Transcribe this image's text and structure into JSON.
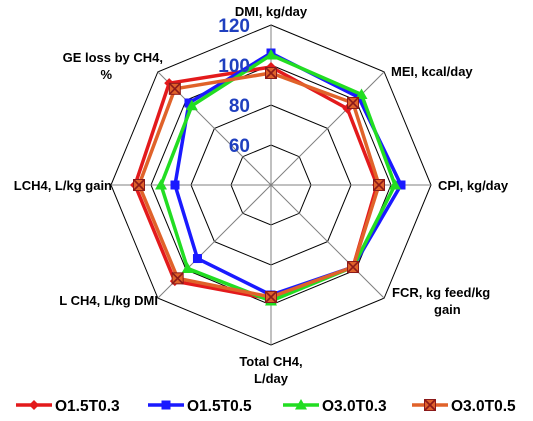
{
  "chart_data": {
    "type": "radar",
    "axes": [
      "DMI, kg/day",
      "MEI, kcal/day",
      "CPI, kg/day",
      "FCR, kg feed/kg gain",
      "Total CH4, L/day",
      "L CH4, L/kg DMI",
      "LCH4, L/kg gain",
      "GE loss by CH4, %"
    ],
    "axis_label_lines": [
      [
        "DMI, kg/day"
      ],
      [
        "MEI, kcal/day"
      ],
      [
        "CPI, kg/day"
      ],
      [
        "FCR, kg feed/kg",
        "gain"
      ],
      [
        "Total CH4,",
        "L/day"
      ],
      [
        "L CH4, L/kg DMI"
      ],
      [
        "LCH4, L/kg gain"
      ],
      [
        "GE loss by CH4,",
        "%"
      ]
    ],
    "ticks": [
      60,
      80,
      100,
      120
    ],
    "range": [
      40,
      120
    ],
    "grid": true,
    "legend_position": "bottom",
    "series": [
      {
        "name": "O1.5T0.3",
        "color": "#e31a1c",
        "marker": "diamond",
        "values": [
          99,
          94,
          93,
          98,
          97,
          108,
          108,
          112
        ]
      },
      {
        "name": "O1.5T0.5",
        "color": "#1a1aff",
        "marker": "square",
        "values": [
          106,
          102,
          105,
          98,
          95,
          92,
          88,
          98
        ]
      },
      {
        "name": "O3.0T0.3",
        "color": "#22dd22",
        "marker": "triangle",
        "values": [
          105,
          104,
          102,
          98,
          98,
          99,
          95,
          96
        ]
      },
      {
        "name": "O3.0T0.5",
        "color": "#e0622a",
        "marker": "x-square",
        "values": [
          96,
          98,
          94,
          98,
          96,
          106,
          106,
          108
        ]
      }
    ]
  }
}
